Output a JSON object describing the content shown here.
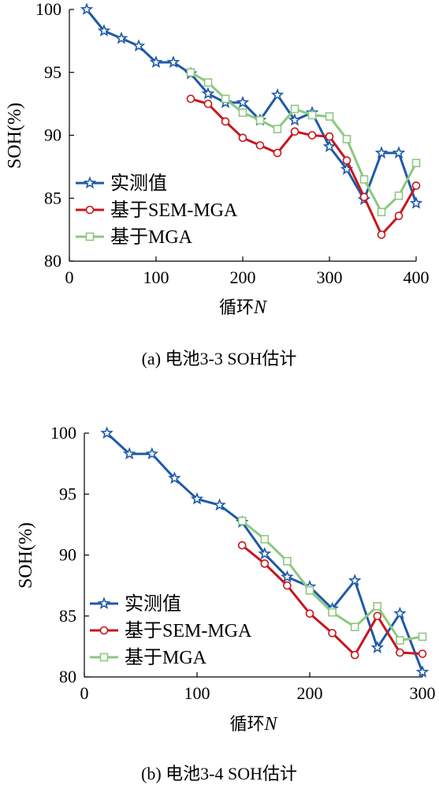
{
  "chart_data": [
    {
      "type": "line",
      "caption": "(a) 电池3-3 SOH估计",
      "xlabel": "循环",
      "xlabel_var": "N",
      "ylabel": "SOH(%)",
      "xlim": [
        0,
        400
      ],
      "ylim": [
        80,
        100
      ],
      "xticks": [
        0,
        100,
        200,
        300,
        400
      ],
      "yticks": [
        80,
        85,
        90,
        95,
        100
      ],
      "legend_position": "bottom-left",
      "series": [
        {
          "name": "实测值",
          "color": "#1f5aa8",
          "marker": "star",
          "x": [
            20,
            40,
            60,
            80,
            100,
            120,
            140,
            160,
            180,
            200,
            220,
            240,
            260,
            280,
            300,
            320,
            340,
            360,
            380,
            400
          ],
          "y": [
            100,
            98.3,
            97.7,
            97.1,
            95.8,
            95.8,
            94.9,
            93.3,
            92.6,
            92.6,
            91.2,
            93.2,
            91.2,
            91.8,
            89.1,
            87.3,
            84.9,
            88.6,
            88.6,
            84.6
          ]
        },
        {
          "name": "基于SEM-MGA",
          "color": "#c8161d",
          "marker": "circle",
          "x": [
            140,
            160,
            180,
            200,
            220,
            240,
            260,
            280,
            300,
            320,
            340,
            360,
            380,
            400
          ],
          "y": [
            92.9,
            92.5,
            91.1,
            89.8,
            89.2,
            88.6,
            90.3,
            90.0,
            89.9,
            88.0,
            85.1,
            82.1,
            83.6,
            86.0
          ]
        },
        {
          "name": "基于MGA",
          "color": "#8dc87e",
          "marker": "square",
          "x": [
            140,
            160,
            180,
            200,
            220,
            240,
            260,
            280,
            300,
            320,
            340,
            360,
            380,
            400
          ],
          "y": [
            95.0,
            94.2,
            92.9,
            91.8,
            91.2,
            90.5,
            92.1,
            91.6,
            91.5,
            89.7,
            86.5,
            83.9,
            85.2,
            87.8
          ]
        }
      ]
    },
    {
      "type": "line",
      "caption": "(b) 电池3-4 SOH估计",
      "xlabel": "循环",
      "xlabel_var": "N",
      "ylabel": "SOH(%)",
      "xlim": [
        0,
        300
      ],
      "ylim": [
        80,
        100
      ],
      "xticks": [
        0,
        100,
        200,
        300
      ],
      "yticks": [
        80,
        85,
        90,
        95,
        100
      ],
      "legend_position": "bottom-left",
      "series": [
        {
          "name": "实测值",
          "color": "#1f5aa8",
          "marker": "star",
          "x": [
            20,
            40,
            60,
            80,
            100,
            120,
            140,
            160,
            180,
            200,
            220,
            240,
            260,
            280,
            300
          ],
          "y": [
            100,
            98.3,
            98.3,
            96.3,
            94.6,
            94.1,
            92.7,
            90.1,
            88.2,
            87.4,
            85.6,
            87.9,
            82.4,
            85.2,
            80.4
          ]
        },
        {
          "name": "基于SEM-MGA",
          "color": "#c8161d",
          "marker": "circle",
          "x": [
            140,
            160,
            180,
            200,
            220,
            240,
            260,
            280,
            300
          ],
          "y": [
            90.8,
            89.3,
            87.5,
            85.2,
            83.6,
            81.8,
            85.0,
            82.0,
            81.9
          ]
        },
        {
          "name": "基于MGA",
          "color": "#8dc87e",
          "marker": "square",
          "x": [
            140,
            160,
            180,
            200,
            220,
            240,
            260,
            280,
            300
          ],
          "y": [
            92.8,
            91.3,
            89.5,
            87.1,
            85.3,
            84.1,
            85.8,
            83.0,
            83.3
          ]
        }
      ]
    }
  ]
}
